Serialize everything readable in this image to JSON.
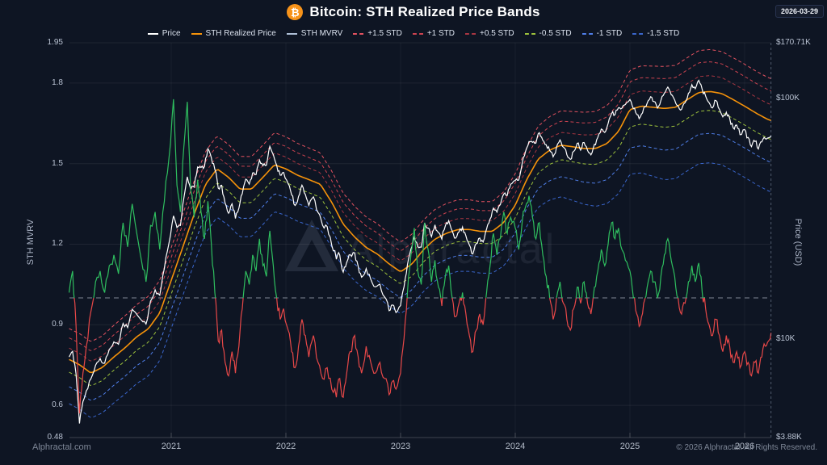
{
  "header": {
    "title": "Bitcoin: STH Realized Price Bands",
    "bitcoin_icon": "₿",
    "date_badge": "2026-03-29"
  },
  "legend": {
    "items": [
      {
        "label": "Price",
        "color": "#ffffff",
        "dashed": false
      },
      {
        "label": "STH Realized Price",
        "color": "#f5920a",
        "dashed": false
      },
      {
        "label": "STH MVRV",
        "color": "#aebfd6",
        "dashed": false
      },
      {
        "label": "+1.5 STD",
        "color": "#e35260",
        "dashed": true
      },
      {
        "label": "+1 STD",
        "color": "#cc4350",
        "dashed": true
      },
      {
        "label": "+0.5 STD",
        "color": "#a83642",
        "dashed": true
      },
      {
        "label": "-0.5 STD",
        "color": "#9dc23c",
        "dashed": true
      },
      {
        "label": "-1 STD",
        "color": "#4f7ee8",
        "dashed": true
      },
      {
        "label": "-1.5 STD",
        "color": "#3a66cc",
        "dashed": true
      }
    ]
  },
  "watermark": {
    "text": "Alphractal"
  },
  "footer": {
    "site": "Alphractal.com",
    "copyright": "© 2026 Alphractal. All Rights Reserved."
  },
  "axes": {
    "left_title": "STH MVRV",
    "right_title": "Price (USD)",
    "left_ticks": [
      {
        "label": "1.95",
        "value": 1.95
      },
      {
        "label": "1.8",
        "value": 1.8
      },
      {
        "label": "1.5",
        "value": 1.5
      },
      {
        "label": "1.2",
        "value": 1.2
      },
      {
        "label": "0.9",
        "value": 0.9
      },
      {
        "label": "0.6",
        "value": 0.6
      },
      {
        "label": "0.48",
        "value": 0.48
      }
    ],
    "right_ticks": [
      {
        "label": "$170.71K",
        "value_kusd": 170.71
      },
      {
        "label": "$100K",
        "value_kusd": 100
      },
      {
        "label": "$10K",
        "value_kusd": 10
      },
      {
        "label": "$3.88K",
        "value_kusd": 3.88
      }
    ],
    "x_ticks": [
      {
        "label": "2021",
        "value": 2021
      },
      {
        "label": "2022",
        "value": 2022
      },
      {
        "label": "2023",
        "value": 2023
      },
      {
        "label": "2024",
        "value": 2024
      },
      {
        "label": "2025",
        "value": 2025
      },
      {
        "label": "2026",
        "value": 2026
      }
    ]
  },
  "chart_data": {
    "type": "line",
    "x_unit": "decimal_year",
    "x_range": [
      2020.11,
      2026.23
    ],
    "left_axis": {
      "label": "STH MVRV",
      "range": [
        0.48,
        1.95
      ],
      "scale": "linear",
      "baseline": 1.0
    },
    "right_axis": {
      "label": "Price (USD)",
      "range_kusd": [
        3.88,
        170.71
      ],
      "scale": "log"
    },
    "grid": "horizontal-major, faint vertical at years, dashed baseline at MVRV 1.0, dashed vertical at last datapoint",
    "legend_position": "top-center",
    "price_rule": "price_kusd = sth_mvrv * sth_realized_price_kusd",
    "band_rule": "band_k_kusd = sth_realized_price_kusd * (1 + k * sigma_rel)",
    "band_multipliers_sigma": [
      1.5,
      1,
      0.5,
      -0.5,
      -1,
      -1.5
    ],
    "std_band_sigma_rel": [
      [
        2020.11,
        0.23
      ],
      [
        2021.2,
        0.25
      ],
      [
        2022.0,
        0.24
      ],
      [
        2023.0,
        0.22
      ],
      [
        2023.8,
        0.22
      ],
      [
        2024.4,
        0.26
      ],
      [
        2024.9,
        0.3
      ],
      [
        2025.3,
        0.33
      ],
      [
        2026.23,
        0.33
      ]
    ],
    "sth_realized_price_kusd": [
      [
        2020.11,
        8.2
      ],
      [
        2020.2,
        7.8
      ],
      [
        2020.3,
        7.2
      ],
      [
        2020.4,
        7.6
      ],
      [
        2020.5,
        8.4
      ],
      [
        2020.6,
        9.2
      ],
      [
        2020.7,
        10.2
      ],
      [
        2020.8,
        11.0
      ],
      [
        2020.9,
        12.8
      ],
      [
        2021.0,
        17.5
      ],
      [
        2021.1,
        24
      ],
      [
        2021.2,
        33
      ],
      [
        2021.3,
        44
      ],
      [
        2021.4,
        51
      ],
      [
        2021.5,
        47
      ],
      [
        2021.6,
        42
      ],
      [
        2021.7,
        42
      ],
      [
        2021.8,
        47
      ],
      [
        2021.9,
        53
      ],
      [
        2022.0,
        51
      ],
      [
        2022.1,
        48
      ],
      [
        2022.2,
        46
      ],
      [
        2022.3,
        44
      ],
      [
        2022.4,
        37
      ],
      [
        2022.5,
        30
      ],
      [
        2022.6,
        26.5
      ],
      [
        2022.7,
        24
      ],
      [
        2022.8,
        22.5
      ],
      [
        2022.9,
        20.5
      ],
      [
        2023.0,
        19
      ],
      [
        2023.1,
        20.5
      ],
      [
        2023.2,
        23.5
      ],
      [
        2023.3,
        26
      ],
      [
        2023.4,
        27.5
      ],
      [
        2023.5,
        28.5
      ],
      [
        2023.6,
        28.5
      ],
      [
        2023.7,
        28
      ],
      [
        2023.8,
        28
      ],
      [
        2023.9,
        30.5
      ],
      [
        2024.0,
        36
      ],
      [
        2024.1,
        46
      ],
      [
        2024.2,
        56
      ],
      [
        2024.3,
        61
      ],
      [
        2024.4,
        64
      ],
      [
        2024.5,
        63
      ],
      [
        2024.6,
        62
      ],
      [
        2024.7,
        62
      ],
      [
        2024.8,
        65
      ],
      [
        2024.9,
        73
      ],
      [
        2025.0,
        90
      ],
      [
        2025.1,
        93
      ],
      [
        2025.2,
        92
      ],
      [
        2025.3,
        91
      ],
      [
        2025.4,
        92
      ],
      [
        2025.5,
        99
      ],
      [
        2025.6,
        106
      ],
      [
        2025.7,
        107
      ],
      [
        2025.8,
        105
      ],
      [
        2025.9,
        99
      ],
      [
        2026.0,
        93
      ],
      [
        2026.1,
        87
      ],
      [
        2026.2,
        82
      ],
      [
        2026.23,
        81
      ]
    ],
    "sth_mvrv": [
      [
        2020.11,
        1.02
      ],
      [
        2020.14,
        1.1
      ],
      [
        2020.17,
        0.9
      ],
      [
        2020.2,
        0.57
      ],
      [
        2020.23,
        0.72
      ],
      [
        2020.26,
        0.82
      ],
      [
        2020.3,
        0.95
      ],
      [
        2020.34,
        1.06
      ],
      [
        2020.38,
        1.1
      ],
      [
        2020.42,
        1.02
      ],
      [
        2020.46,
        1.12
      ],
      [
        2020.5,
        1.16
      ],
      [
        2020.54,
        1.09
      ],
      [
        2020.58,
        1.28
      ],
      [
        2020.62,
        1.19
      ],
      [
        2020.66,
        1.35
      ],
      [
        2020.7,
        1.24
      ],
      [
        2020.74,
        1.14
      ],
      [
        2020.78,
        1.06
      ],
      [
        2020.82,
        1.27
      ],
      [
        2020.86,
        1.32
      ],
      [
        2020.9,
        1.18
      ],
      [
        2020.94,
        1.36
      ],
      [
        2020.98,
        1.52
      ],
      [
        2021.02,
        1.74
      ],
      [
        2021.05,
        1.42
      ],
      [
        2021.08,
        1.32
      ],
      [
        2021.11,
        1.56
      ],
      [
        2021.14,
        1.73
      ],
      [
        2021.17,
        1.4
      ],
      [
        2021.2,
        1.3
      ],
      [
        2021.23,
        1.44
      ],
      [
        2021.26,
        1.32
      ],
      [
        2021.29,
        1.22
      ],
      [
        2021.32,
        1.36
      ],
      [
        2021.35,
        1.2
      ],
      [
        2021.38,
        1.02
      ],
      [
        2021.41,
        0.84
      ],
      [
        2021.44,
        0.88
      ],
      [
        2021.47,
        0.76
      ],
      [
        2021.5,
        0.71
      ],
      [
        2021.53,
        0.8
      ],
      [
        2021.56,
        0.72
      ],
      [
        2021.59,
        0.82
      ],
      [
        2021.62,
        0.96
      ],
      [
        2021.65,
        1.1
      ],
      [
        2021.68,
        1.05
      ],
      [
        2021.71,
        1.16
      ],
      [
        2021.74,
        1.1
      ],
      [
        2021.77,
        1.22
      ],
      [
        2021.8,
        1.12
      ],
      [
        2021.83,
        1.08
      ],
      [
        2021.86,
        1.25
      ],
      [
        2021.89,
        1.12
      ],
      [
        2021.92,
        1.0
      ],
      [
        2021.95,
        0.92
      ],
      [
        2021.98,
        0.96
      ],
      [
        2022.02,
        0.88
      ],
      [
        2022.05,
        0.8
      ],
      [
        2022.08,
        0.74
      ],
      [
        2022.11,
        0.82
      ],
      [
        2022.14,
        0.92
      ],
      [
        2022.17,
        0.86
      ],
      [
        2022.2,
        0.78
      ],
      [
        2022.24,
        0.86
      ],
      [
        2022.28,
        0.76
      ],
      [
        2022.32,
        0.7
      ],
      [
        2022.36,
        0.74
      ],
      [
        2022.4,
        0.66
      ],
      [
        2022.44,
        0.63
      ],
      [
        2022.47,
        0.7
      ],
      [
        2022.5,
        0.63
      ],
      [
        2022.53,
        0.72
      ],
      [
        2022.56,
        0.8
      ],
      [
        2022.6,
        0.86
      ],
      [
        2022.63,
        0.78
      ],
      [
        2022.66,
        0.72
      ],
      [
        2022.7,
        0.82
      ],
      [
        2022.74,
        0.76
      ],
      [
        2022.78,
        0.72
      ],
      [
        2022.82,
        0.76
      ],
      [
        2022.86,
        0.7
      ],
      [
        2022.9,
        0.64
      ],
      [
        2022.93,
        0.69
      ],
      [
        2022.96,
        0.66
      ],
      [
        2023.0,
        0.72
      ],
      [
        2023.03,
        0.85
      ],
      [
        2023.06,
        1.02
      ],
      [
        2023.09,
        1.16
      ],
      [
        2023.12,
        1.26
      ],
      [
        2023.15,
        1.1
      ],
      [
        2023.18,
        1.05
      ],
      [
        2023.21,
        1.28
      ],
      [
        2023.24,
        1.18
      ],
      [
        2023.27,
        1.06
      ],
      [
        2023.3,
        1.14
      ],
      [
        2023.33,
        1.04
      ],
      [
        2023.36,
        0.97
      ],
      [
        2023.39,
        1.08
      ],
      [
        2023.42,
        1.12
      ],
      [
        2023.45,
        1.0
      ],
      [
        2023.48,
        0.93
      ],
      [
        2023.51,
        0.98
      ],
      [
        2023.54,
        1.02
      ],
      [
        2023.57,
        0.94
      ],
      [
        2023.6,
        0.86
      ],
      [
        2023.63,
        0.8
      ],
      [
        2023.66,
        0.88
      ],
      [
        2023.69,
        0.94
      ],
      [
        2023.72,
        0.9
      ],
      [
        2023.75,
        1.02
      ],
      [
        2023.78,
        1.12
      ],
      [
        2023.81,
        1.24
      ],
      [
        2023.84,
        1.16
      ],
      [
        2023.87,
        1.22
      ],
      [
        2023.9,
        1.32
      ],
      [
        2023.93,
        1.24
      ],
      [
        2023.96,
        1.3
      ],
      [
        2024.0,
        1.26
      ],
      [
        2024.03,
        1.18
      ],
      [
        2024.06,
        1.28
      ],
      [
        2024.09,
        1.34
      ],
      [
        2024.12,
        1.38
      ],
      [
        2024.15,
        1.3
      ],
      [
        2024.18,
        1.22
      ],
      [
        2024.21,
        1.28
      ],
      [
        2024.24,
        1.16
      ],
      [
        2024.27,
        1.08
      ],
      [
        2024.3,
        1.0
      ],
      [
        2024.33,
        0.92
      ],
      [
        2024.36,
        1.0
      ],
      [
        2024.39,
        1.06
      ],
      [
        2024.42,
        0.98
      ],
      [
        2024.45,
        0.92
      ],
      [
        2024.48,
        0.88
      ],
      [
        2024.51,
        0.96
      ],
      [
        2024.54,
        1.04
      ],
      [
        2024.57,
        0.98
      ],
      [
        2024.6,
        1.06
      ],
      [
        2024.63,
        0.98
      ],
      [
        2024.66,
        0.94
      ],
      [
        2024.69,
        1.04
      ],
      [
        2024.72,
        1.1
      ],
      [
        2024.75,
        1.18
      ],
      [
        2024.78,
        1.12
      ],
      [
        2024.81,
        1.2
      ],
      [
        2024.84,
        1.28
      ],
      [
        2024.87,
        1.22
      ],
      [
        2024.9,
        1.26
      ],
      [
        2024.93,
        1.18
      ],
      [
        2024.96,
        1.14
      ],
      [
        2025.0,
        1.1
      ],
      [
        2025.03,
        1.0
      ],
      [
        2025.06,
        0.94
      ],
      [
        2025.09,
        0.9
      ],
      [
        2025.12,
        0.98
      ],
      [
        2025.15,
        1.04
      ],
      [
        2025.18,
        1.1
      ],
      [
        2025.21,
        1.06
      ],
      [
        2025.24,
        1.0
      ],
      [
        2025.27,
        1.08
      ],
      [
        2025.3,
        1.16
      ],
      [
        2025.33,
        1.22
      ],
      [
        2025.36,
        1.14
      ],
      [
        2025.39,
        1.08
      ],
      [
        2025.42,
        1.0
      ],
      [
        2025.45,
        0.94
      ],
      [
        2025.48,
        0.98
      ],
      [
        2025.51,
        1.06
      ],
      [
        2025.54,
        1.12
      ],
      [
        2025.57,
        1.06
      ],
      [
        2025.6,
        1.13
      ],
      [
        2025.63,
        1.02
      ],
      [
        2025.66,
        0.96
      ],
      [
        2025.69,
        0.9
      ],
      [
        2025.72,
        0.86
      ],
      [
        2025.75,
        0.92
      ],
      [
        2025.78,
        0.86
      ],
      [
        2025.81,
        0.8
      ],
      [
        2025.84,
        0.86
      ],
      [
        2025.87,
        0.82
      ],
      [
        2025.9,
        0.76
      ],
      [
        2025.93,
        0.8
      ],
      [
        2025.96,
        0.74
      ],
      [
        2026.0,
        0.8
      ],
      [
        2026.03,
        0.76
      ],
      [
        2026.06,
        0.71
      ],
      [
        2026.09,
        0.76
      ],
      [
        2026.12,
        0.72
      ],
      [
        2026.15,
        0.78
      ],
      [
        2026.18,
        0.82
      ],
      [
        2026.21,
        0.84
      ],
      [
        2026.23,
        0.87
      ]
    ]
  },
  "colors": {
    "background": "#0e1523",
    "grid": "rgba(255,255,255,0.07)",
    "grid_vertical": "rgba(255,255,255,0.045)",
    "axis_line": "rgba(255,255,255,0.20)",
    "baseline_dash": "rgba(205,212,224,0.60)",
    "end_line_dash": "rgba(160,172,195,0.45)",
    "mvrv_above": "#2fbe5f",
    "mvrv_below": "#e84848",
    "watermark": "rgba(152,163,184,0.11)",
    "watermark_logo": "rgba(152,163,184,0.16)"
  }
}
